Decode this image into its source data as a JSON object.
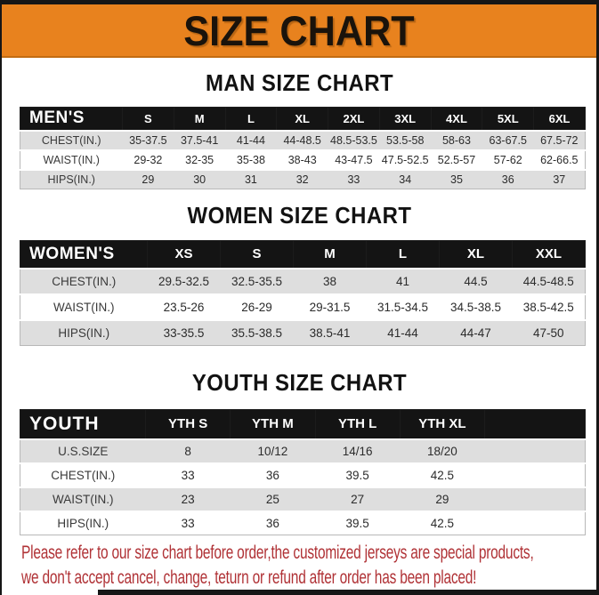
{
  "page": {
    "title": "SIZE CHART",
    "footer_line1": "Please refer to our size chart before order,the customized jerseys are special products,",
    "footer_line2": "we don't accept cancel, change, teturn or refund after order has been placed!"
  },
  "colors": {
    "banner_orange": "#E8821E",
    "header_black": "#141414",
    "row_gray": "#DEDEDE",
    "footer_red": "#B03236"
  },
  "sections": [
    {
      "heading": "MAN SIZE CHART",
      "table": {
        "label": "MEN'S",
        "columns": [
          "S",
          "M",
          "L",
          "XL",
          "2XL",
          "3XL",
          "4XL",
          "5XL",
          "6XL"
        ],
        "rows": [
          {
            "label": "CHEST(IN.)",
            "values": [
              "35-37.5",
              "37.5-41",
              "41-44",
              "44-48.5",
              "48.5-53.5",
              "53.5-58",
              "58-63",
              "63-67.5",
              "67.5-72"
            ]
          },
          {
            "label": "WAIST(IN.)",
            "values": [
              "29-32",
              "32-35",
              "35-38",
              "38-43",
              "43-47.5",
              "47.5-52.5",
              "52.5-57",
              "57-62",
              "62-66.5"
            ]
          },
          {
            "label": "HIPS(IN.)",
            "values": [
              "29",
              "30",
              "31",
              "32",
              "33",
              "34",
              "35",
              "36",
              "37"
            ]
          }
        ]
      }
    },
    {
      "heading": "WOMEN SIZE CHART",
      "table": {
        "label": "WOMEN'S",
        "columns": [
          "XS",
          "S",
          "M",
          "L",
          "XL",
          "XXL"
        ],
        "rows": [
          {
            "label": "CHEST(IN.)",
            "values": [
              "29.5-32.5",
              "32.5-35.5",
              "38",
              "41",
              "44.5",
              "44.5-48.5"
            ]
          },
          {
            "label": "WAIST(IN.)",
            "values": [
              "23.5-26",
              "26-29",
              "29-31.5",
              "31.5-34.5",
              "34.5-38.5",
              "38.5-42.5"
            ]
          },
          {
            "label": "HIPS(IN.)",
            "values": [
              "33-35.5",
              "35.5-38.5",
              "38.5-41",
              "41-44",
              "44-47",
              "47-50"
            ]
          }
        ]
      }
    },
    {
      "heading": "YOUTH SIZE CHART",
      "table": {
        "label": "YOUTH",
        "columns": [
          "YTH S",
          "YTH M",
          "YTH L",
          "YTH XL"
        ],
        "rows": [
          {
            "label": "U.S.SIZE",
            "values": [
              "8",
              "10/12",
              "14/16",
              "18/20"
            ]
          },
          {
            "label": "CHEST(IN.)",
            "values": [
              "33",
              "36",
              "39.5",
              "42.5"
            ]
          },
          {
            "label": "WAIST(IN.)",
            "values": [
              "23",
              "25",
              "27",
              "29"
            ]
          },
          {
            "label": "HIPS(IN.)",
            "values": [
              "33",
              "36",
              "39.5",
              "42.5"
            ]
          }
        ]
      }
    }
  ]
}
